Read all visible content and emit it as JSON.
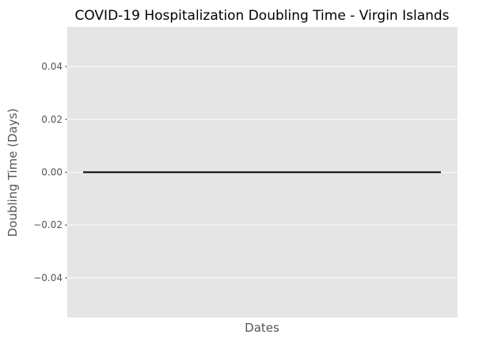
{
  "chart_data": {
    "type": "line",
    "title": "COVID-19 Hospitalization Doubling Time - Virgin Islands",
    "xlabel": "Dates",
    "ylabel": "Doubling Time (Days)",
    "ylim": [
      -0.055,
      0.055
    ],
    "yticks": [
      -0.04,
      -0.02,
      0.0,
      0.02,
      0.04
    ],
    "ytick_labels": [
      "−0.04",
      "−0.02",
      "0.00",
      "0.02",
      "0.04"
    ],
    "x_tick_labels": [],
    "grid": true,
    "series": [
      {
        "color": "#000000",
        "values": [
          0,
          0
        ]
      }
    ]
  },
  "colors": {
    "plot_background": "#e5e5e5",
    "grid": "#ffffff",
    "tick_label": "#555555",
    "axis_label": "#555555",
    "title": "#000000"
  }
}
